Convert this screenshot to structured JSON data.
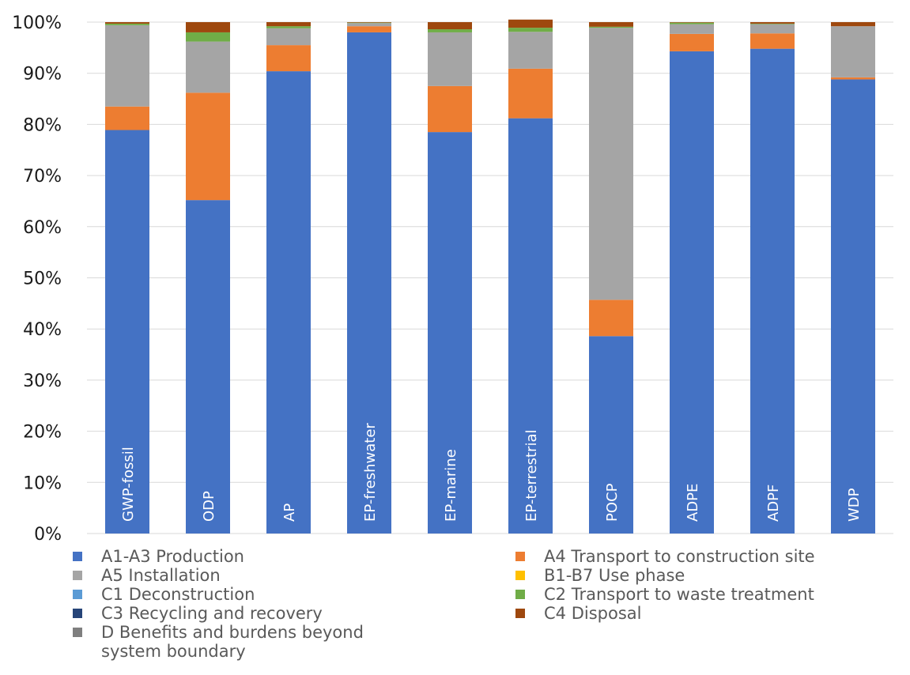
{
  "chart_data": {
    "type": "bar",
    "stacked": true,
    "percent": true,
    "categories": [
      "GWP-fossil",
      "ODP",
      "AP",
      "EP-freshwater",
      "EP-marine",
      "EP-terrestrial",
      "POCP",
      "ADPE",
      "ADPF",
      "WDP"
    ],
    "ylim": [
      0,
      100
    ],
    "yticks": [
      "0%",
      "10%",
      "20%",
      "30%",
      "40%",
      "50%",
      "60%",
      "70%",
      "80%",
      "90%",
      "100%"
    ],
    "grid": true,
    "legend_position": "bottom",
    "series": [
      {
        "name": "A1-A3 Production",
        "color": "#4472C4",
        "values": [
          78.9,
          65.2,
          90.4,
          98.0,
          78.5,
          81.2,
          38.6,
          94.3,
          94.8,
          88.8
        ]
      },
      {
        "name": "A4 Transport to construction site",
        "color": "#ED7D31",
        "values": [
          4.6,
          21.0,
          5.1,
          1.2,
          9.0,
          9.7,
          7.1,
          3.4,
          3.0,
          0.4
        ]
      },
      {
        "name": "A5 Installation",
        "color": "#A5A5A5",
        "values": [
          15.9,
          10.0,
          3.3,
          0.6,
          10.5,
          7.2,
          53.2,
          1.9,
          1.8,
          10.0
        ]
      },
      {
        "name": "B1-B7 Use phase",
        "color": "#FFC000",
        "values": [
          0,
          0,
          0,
          0,
          0,
          0,
          0,
          0,
          0,
          0
        ]
      },
      {
        "name": "C1 Deconstruction",
        "color": "#5B9BD5",
        "values": [
          0,
          0,
          0,
          0,
          0,
          0,
          0,
          0,
          0,
          0
        ]
      },
      {
        "name": "C2 Transport to waste treatment",
        "color": "#70AD47",
        "values": [
          0.3,
          1.8,
          0.4,
          0.1,
          0.6,
          0.8,
          0.2,
          0.3,
          0.1,
          0.0
        ]
      },
      {
        "name": "C3 Recycling and recovery",
        "color": "#264478",
        "values": [
          0,
          0,
          0,
          0,
          0,
          0,
          0,
          0,
          0,
          0
        ]
      },
      {
        "name": "C4 Disposal",
        "color": "#9E480E",
        "values": [
          0.3,
          2.0,
          0.8,
          0.1,
          1.4,
          1.6,
          0.9,
          0.1,
          0.3,
          0.8
        ]
      },
      {
        "name": "D Benefits and burdens beyond system boundary",
        "color": "#7F7F7F",
        "values": [
          0,
          0,
          0,
          0,
          0,
          0,
          0,
          0,
          0,
          0
        ]
      }
    ],
    "legend": [
      {
        "name": "A1-A3 Production",
        "color": "#4472C4"
      },
      {
        "name": "A4 Transport to construction site",
        "color": "#ED7D31"
      },
      {
        "name": "A5 Installation",
        "color": "#A5A5A5"
      },
      {
        "name": "B1-B7 Use phase",
        "color": "#FFC000"
      },
      {
        "name": "C1 Deconstruction",
        "color": "#5B9BD5"
      },
      {
        "name": "C2 Transport to waste treatment",
        "color": "#70AD47"
      },
      {
        "name": "C3 Recycling and recovery",
        "color": "#264478"
      },
      {
        "name": "C4 Disposal",
        "color": "#9E480E"
      },
      {
        "name": "D Benefits and burdens beyond system boundary",
        "color": "#7F7F7F",
        "lines": [
          "D Benefits and burdens beyond",
          "system boundary"
        ]
      }
    ]
  }
}
